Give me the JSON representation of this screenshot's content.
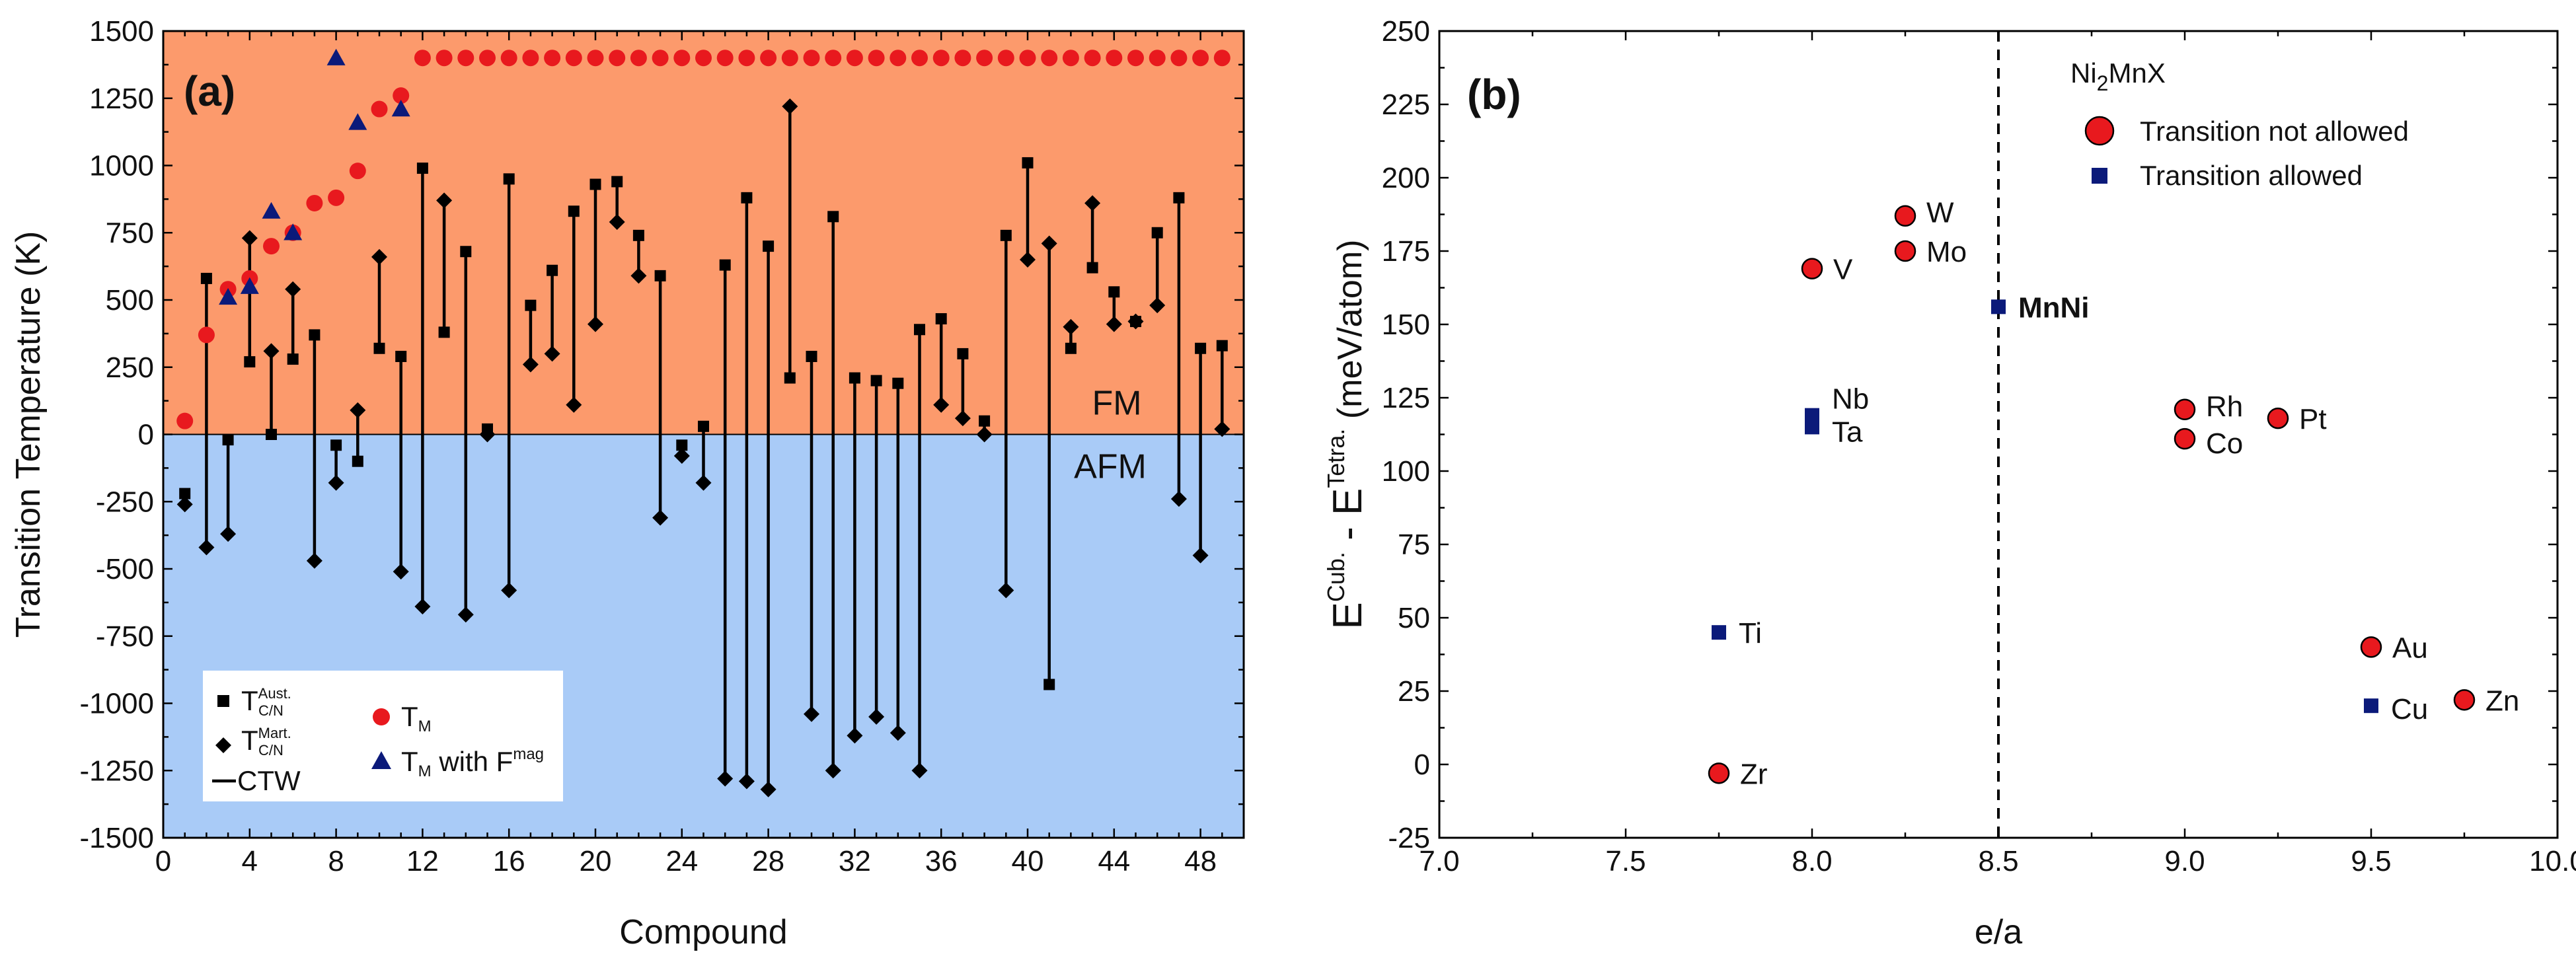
{
  "chart_data": [
    {
      "panel": "(a)",
      "type": "scatter",
      "xlabel": "Compound",
      "ylabel": "Transition Temperature (K)",
      "xlim": [
        0,
        50
      ],
      "ylim": [
        -1500,
        1500
      ],
      "xticks": [
        0,
        4,
        8,
        12,
        16,
        20,
        24,
        28,
        32,
        36,
        40,
        44,
        48
      ],
      "yticks": [
        -1500,
        -1250,
        -1000,
        -750,
        -500,
        -250,
        0,
        250,
        500,
        750,
        1000,
        1250,
        1500
      ],
      "regions": [
        {
          "label": "FM",
          "from": 0,
          "to": 1500,
          "color": "#fc9a6c"
        },
        {
          "label": "AFM",
          "from": -1500,
          "to": 0,
          "color": "#a9cbf7"
        }
      ],
      "legend": {
        "items": [
          {
            "symbol": "square",
            "text": "T",
            "sup": "Aust.",
            "sub": "C/N"
          },
          {
            "symbol": "diamond",
            "text": "T",
            "sup": "Mart.",
            "sub": "C/N"
          },
          {
            "symbol": "line",
            "text": "CTW"
          },
          {
            "symbol": "circle",
            "text": "T",
            "sub": "M"
          },
          {
            "symbol": "triangle",
            "text": "T",
            "sub": "M",
            "extra": " with F",
            "sup": "mag"
          }
        ]
      },
      "ctw": [
        {
          "x": 1,
          "aust": -220,
          "mart": -260
        },
        {
          "x": 2,
          "aust": 580,
          "mart": -420
        },
        {
          "x": 3,
          "aust": -20,
          "mart": -370
        },
        {
          "x": 4,
          "aust": 270,
          "mart": 730
        },
        {
          "x": 5,
          "aust": 0,
          "mart": 310
        },
        {
          "x": 6,
          "aust": 280,
          "mart": 540
        },
        {
          "x": 7,
          "aust": 370,
          "mart": -470
        },
        {
          "x": 8,
          "aust": -40,
          "mart": -180
        },
        {
          "x": 9,
          "aust": -100,
          "mart": 90
        },
        {
          "x": 10,
          "aust": 320,
          "mart": 660
        },
        {
          "x": 11,
          "aust": 290,
          "mart": -510
        },
        {
          "x": 12,
          "aust": 990,
          "mart": -640
        },
        {
          "x": 13,
          "aust": 380,
          "mart": 870
        },
        {
          "x": 14,
          "aust": 680,
          "mart": -670
        },
        {
          "x": 15,
          "aust": 20,
          "mart": 0
        },
        {
          "x": 16,
          "aust": 950,
          "mart": -580
        },
        {
          "x": 17,
          "aust": 480,
          "mart": 260
        },
        {
          "x": 18,
          "aust": 610,
          "mart": 300
        },
        {
          "x": 19,
          "aust": 830,
          "mart": 110
        },
        {
          "x": 20,
          "aust": 930,
          "mart": 410
        },
        {
          "x": 21,
          "aust": 940,
          "mart": 790
        },
        {
          "x": 22,
          "aust": 740,
          "mart": 590
        },
        {
          "x": 23,
          "aust": 590,
          "mart": -310
        },
        {
          "x": 24,
          "aust": -40,
          "mart": -80
        },
        {
          "x": 25,
          "aust": 30,
          "mart": -180
        },
        {
          "x": 26,
          "aust": 630,
          "mart": -1280
        },
        {
          "x": 27,
          "aust": 880,
          "mart": -1290
        },
        {
          "x": 28,
          "aust": 700,
          "mart": -1320
        },
        {
          "x": 29,
          "aust": 210,
          "mart": 1220
        },
        {
          "x": 30,
          "aust": 290,
          "mart": -1040
        },
        {
          "x": 31,
          "aust": 810,
          "mart": -1250
        },
        {
          "x": 32,
          "aust": 210,
          "mart": -1120
        },
        {
          "x": 33,
          "aust": 200,
          "mart": -1050
        },
        {
          "x": 34,
          "aust": 190,
          "mart": -1110
        },
        {
          "x": 35,
          "aust": 390,
          "mart": -1250
        },
        {
          "x": 36,
          "aust": 430,
          "mart": 110
        },
        {
          "x": 37,
          "aust": 300,
          "mart": 60
        },
        {
          "x": 38,
          "aust": 50,
          "mart": 0
        },
        {
          "x": 39,
          "aust": 740,
          "mart": -580
        },
        {
          "x": 40,
          "aust": 1010,
          "mart": 650
        },
        {
          "x": 41,
          "aust": -930,
          "mart": 710
        },
        {
          "x": 42,
          "aust": 320,
          "mart": 400
        },
        {
          "x": 43,
          "aust": 620,
          "mart": 860
        },
        {
          "x": 44,
          "aust": 530,
          "mart": 410
        },
        {
          "x": 45,
          "aust": 420,
          "mart": 420
        },
        {
          "x": 46,
          "aust": 750,
          "mart": 480
        },
        {
          "x": 47,
          "aust": 880,
          "mart": -240
        },
        {
          "x": 48,
          "aust": 320,
          "mart": -450
        },
        {
          "x": 49,
          "aust": 330,
          "mart": 20
        }
      ],
      "tm": [
        {
          "x": 1,
          "y": 50
        },
        {
          "x": 2,
          "y": 370
        },
        {
          "x": 3,
          "y": 540
        },
        {
          "x": 4,
          "y": 580
        },
        {
          "x": 5,
          "y": 700
        },
        {
          "x": 6,
          "y": 750
        },
        {
          "x": 7,
          "y": 860
        },
        {
          "x": 8,
          "y": 880
        },
        {
          "x": 9,
          "y": 980
        },
        {
          "x": 10,
          "y": 1210
        },
        {
          "x": 11,
          "y": 1260
        },
        {
          "x": 12,
          "y": 1400
        },
        {
          "x": 13,
          "y": 1400
        },
        {
          "x": 14,
          "y": 1400
        },
        {
          "x": 15,
          "y": 1400
        },
        {
          "x": 16,
          "y": 1400
        },
        {
          "x": 17,
          "y": 1400
        },
        {
          "x": 18,
          "y": 1400
        },
        {
          "x": 19,
          "y": 1400
        },
        {
          "x": 20,
          "y": 1400
        },
        {
          "x": 21,
          "y": 1400
        },
        {
          "x": 22,
          "y": 1400
        },
        {
          "x": 23,
          "y": 1400
        },
        {
          "x": 24,
          "y": 1400
        },
        {
          "x": 25,
          "y": 1400
        },
        {
          "x": 26,
          "y": 1400
        },
        {
          "x": 27,
          "y": 1400
        },
        {
          "x": 28,
          "y": 1400
        },
        {
          "x": 29,
          "y": 1400
        },
        {
          "x": 30,
          "y": 1400
        },
        {
          "x": 31,
          "y": 1400
        },
        {
          "x": 32,
          "y": 1400
        },
        {
          "x": 33,
          "y": 1400
        },
        {
          "x": 34,
          "y": 1400
        },
        {
          "x": 35,
          "y": 1400
        },
        {
          "x": 36,
          "y": 1400
        },
        {
          "x": 37,
          "y": 1400
        },
        {
          "x": 38,
          "y": 1400
        },
        {
          "x": 39,
          "y": 1400
        },
        {
          "x": 40,
          "y": 1400
        },
        {
          "x": 41,
          "y": 1400
        },
        {
          "x": 42,
          "y": 1400
        },
        {
          "x": 43,
          "y": 1400
        },
        {
          "x": 44,
          "y": 1400
        },
        {
          "x": 45,
          "y": 1400
        },
        {
          "x": 46,
          "y": 1400
        },
        {
          "x": 47,
          "y": 1400
        },
        {
          "x": 48,
          "y": 1400
        },
        {
          "x": 49,
          "y": 1400
        }
      ],
      "tm_fmag": [
        {
          "x": 3,
          "y": 510
        },
        {
          "x": 4,
          "y": 550
        },
        {
          "x": 5,
          "y": 830
        },
        {
          "x": 6,
          "y": 750
        },
        {
          "x": 8,
          "y": 1400
        },
        {
          "x": 9,
          "y": 1160
        },
        {
          "x": 11,
          "y": 1210
        }
      ]
    },
    {
      "panel": "(b)",
      "type": "scatter",
      "title": "Ni2MnX",
      "title_base": "Ni",
      "title_sub": "2",
      "title_rest": "MnX",
      "xlabel": "e/a",
      "ylabel_base": "E",
      "ylabel_sup1": "Cub.",
      "ylabel_mid": " - E",
      "ylabel_sup2": "Tetra.",
      "ylabel_unit": " (meV/atom)",
      "xlim": [
        7.0,
        10.0
      ],
      "ylim": [
        -25,
        250
      ],
      "xticks": [
        "7.0",
        "7.5",
        "8.0",
        "8.5",
        "9.0",
        "9.5",
        "10.0"
      ],
      "yticks": [
        "-25",
        "0",
        "25",
        "50",
        "75",
        "100",
        "125",
        "150",
        "175",
        "200",
        "225",
        "250"
      ],
      "vline": 8.5,
      "legend": [
        {
          "symbol": "circle",
          "text": "Transition not allowed",
          "color": "#e8191e"
        },
        {
          "symbol": "square",
          "text": "Transition allowed",
          "color": "#0b1a7a"
        }
      ],
      "not_allowed": [
        {
          "label": "W",
          "x": 8.25,
          "y": 187
        },
        {
          "label": "Mo",
          "x": 8.25,
          "y": 175
        },
        {
          "label": "V",
          "x": 8.0,
          "y": 169
        },
        {
          "label": "Rh",
          "x": 9.0,
          "y": 121
        },
        {
          "label": "Co",
          "x": 9.0,
          "y": 111
        },
        {
          "label": "Pt",
          "x": 9.25,
          "y": 118
        },
        {
          "label": "Au",
          "x": 9.5,
          "y": 40
        },
        {
          "label": "Zn",
          "x": 9.75,
          "y": 22
        },
        {
          "label": "Zr",
          "x": 7.75,
          "y": -3
        }
      ],
      "allowed": [
        {
          "label": "MnNi",
          "x": 8.5,
          "y": 156,
          "bold": true
        },
        {
          "label": "Nb",
          "x": 8.0,
          "y": 119
        },
        {
          "label": "Ta",
          "x": 8.0,
          "y": 115
        },
        {
          "label": "Ti",
          "x": 7.75,
          "y": 45
        },
        {
          "label": "Cu",
          "x": 9.5,
          "y": 20
        }
      ]
    }
  ],
  "colors": {
    "fm": "#fc9a6c",
    "afm": "#a9cbf7",
    "red": "#e8191e",
    "blue": "#0b1a7a",
    "black": "#000000"
  }
}
